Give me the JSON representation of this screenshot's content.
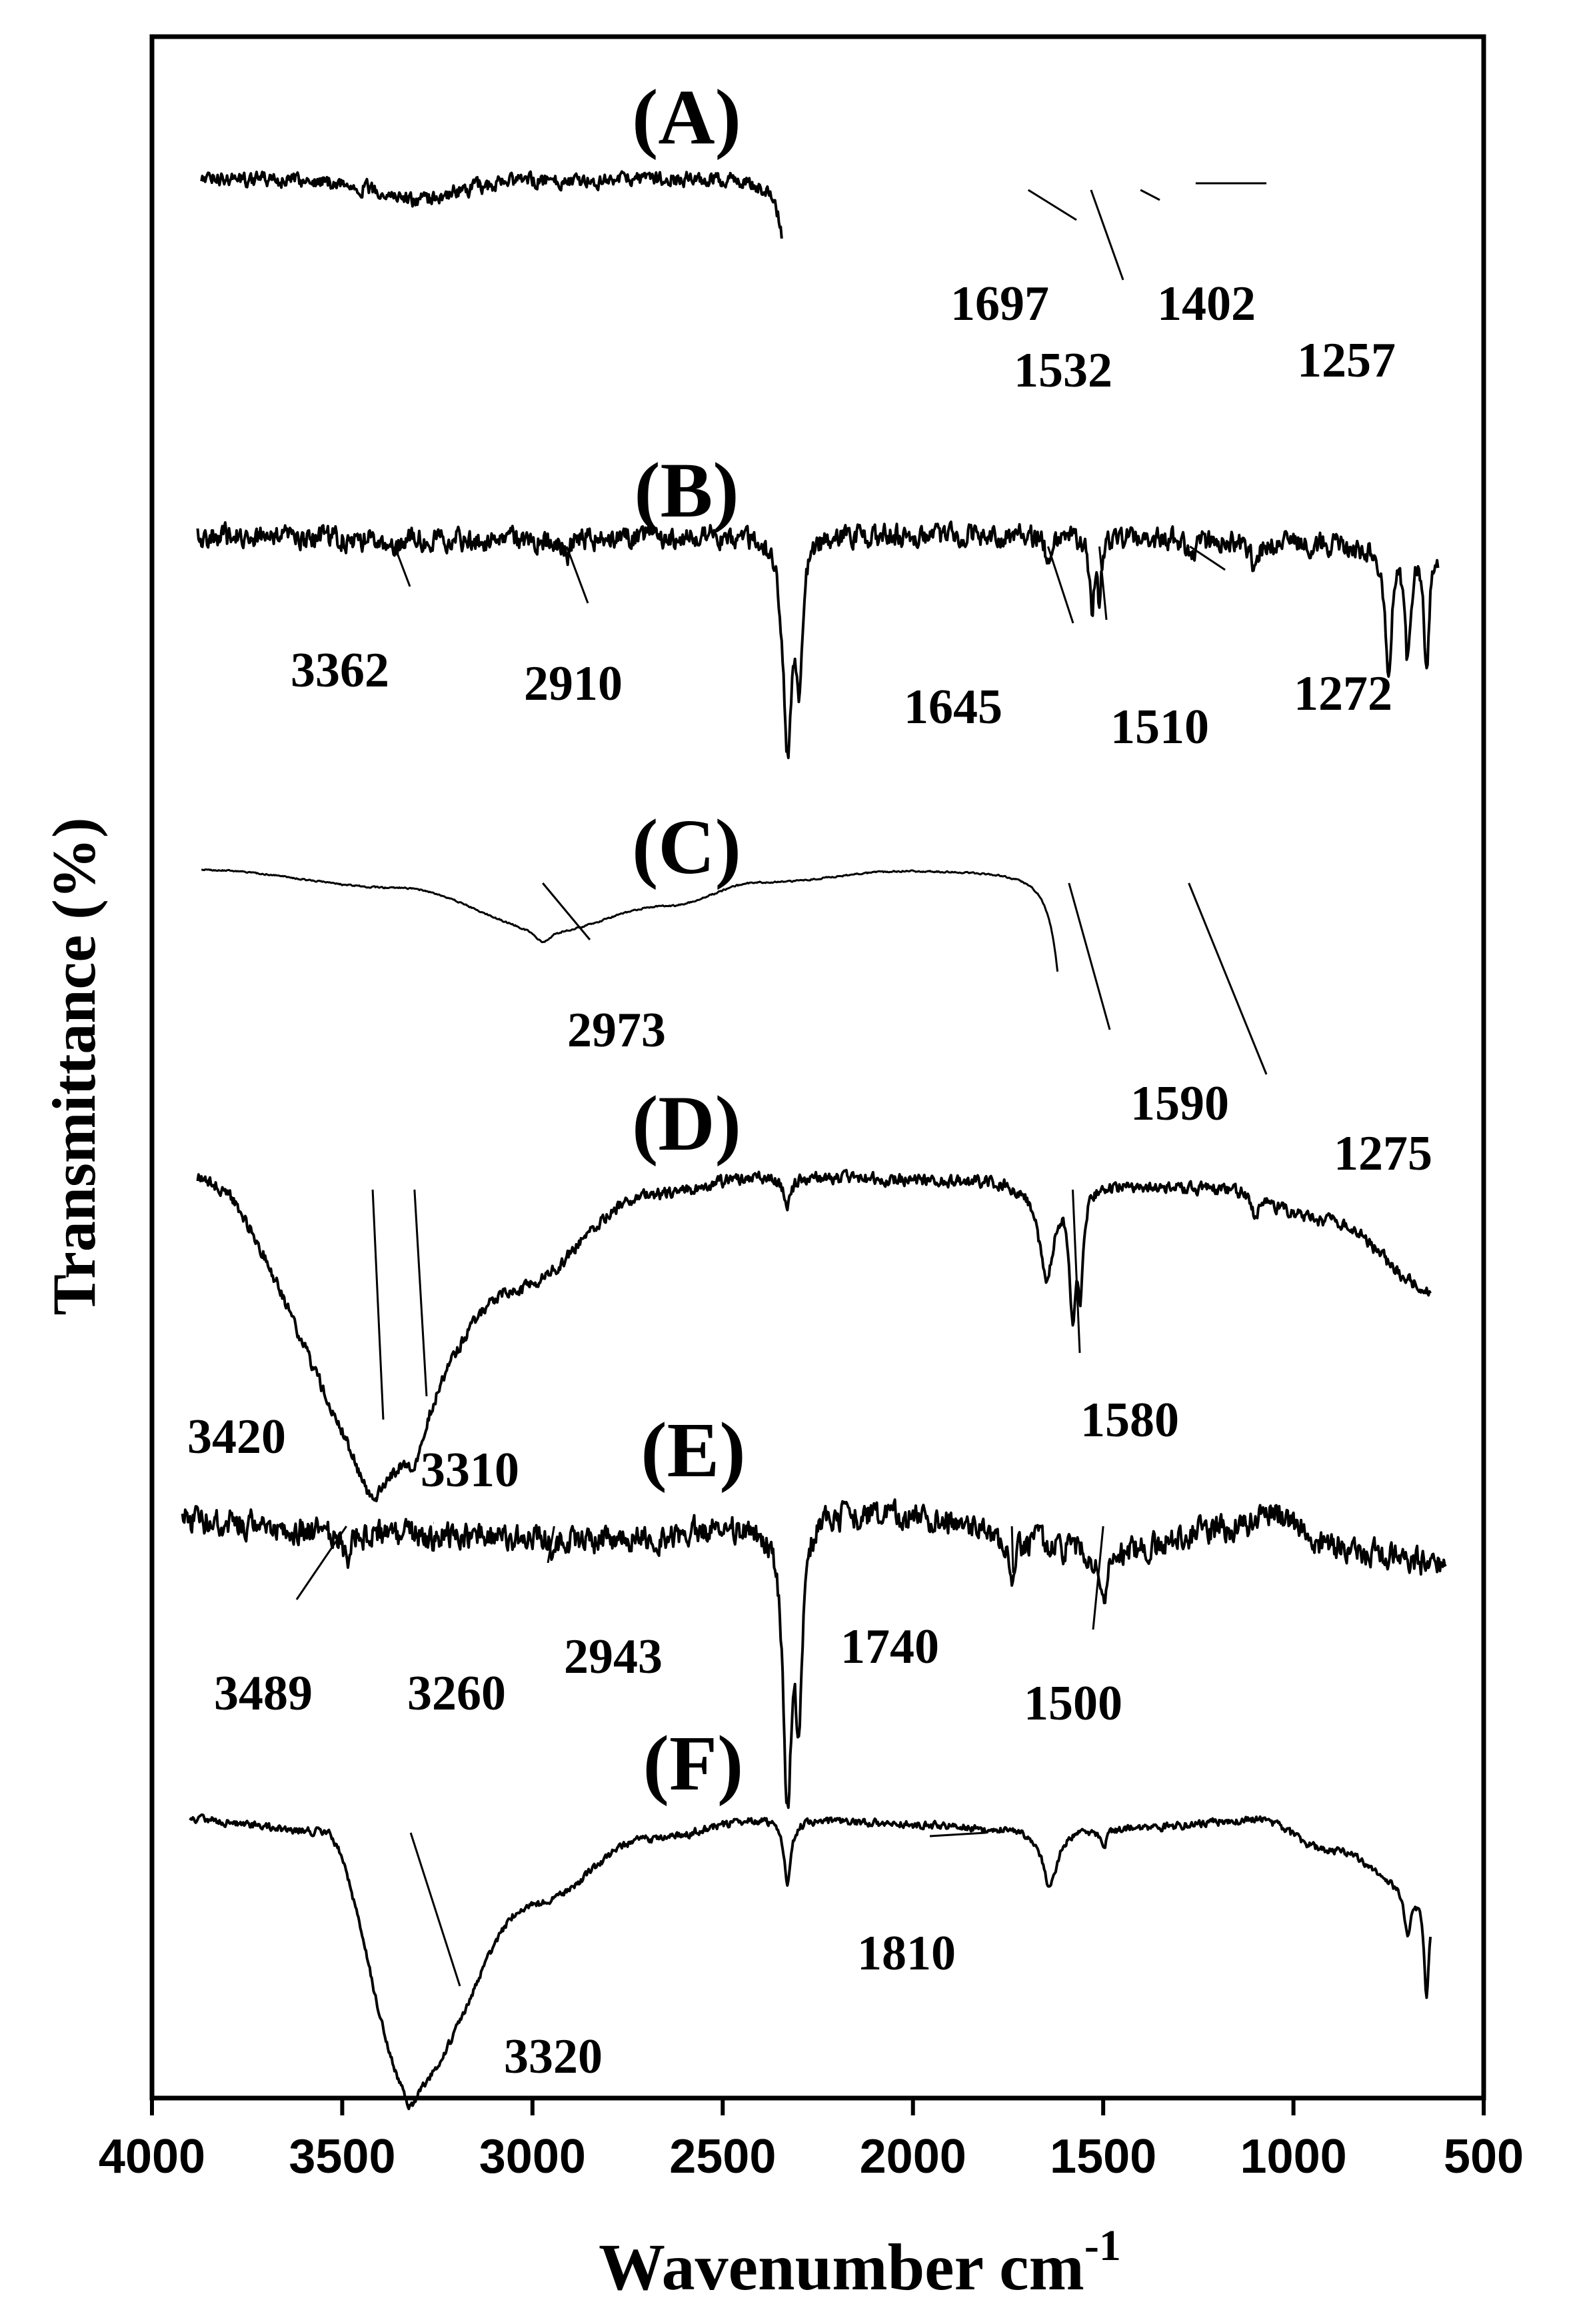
{
  "chart_data": {
    "type": "line",
    "title": "",
    "xlabel": "Wavenumber cm",
    "xlabel_superscript": "-1",
    "ylabel": "Transmittance (%)",
    "xlim": [
      4000,
      500
    ],
    "xticks": [
      "4000",
      "3500",
      "3000",
      "2500",
      "2000",
      "1500",
      "1000",
      "500"
    ],
    "grid": false,
    "series": [
      {
        "name": "(A)",
        "noise": 0.35,
        "baseline": [
          [
            3870,
            0.05
          ],
          [
            3600,
            0.1
          ],
          [
            3300,
            0.4
          ],
          [
            3000,
            0.1
          ],
          [
            2400,
            0.0
          ],
          [
            2345,
            0.05
          ]
        ],
        "peaks": [
          [
            3300,
            0.35,
            80
          ],
          [
            2310,
            8.0,
            18
          ],
          [
            2270,
            4.5,
            12
          ],
          [
            1697,
            0.6,
            8
          ],
          [
            1532,
            1.6,
            8
          ],
          [
            1502,
            1.1,
            6
          ],
          [
            1402,
            0.4,
            10
          ],
          [
            1257,
            0.3,
            10
          ],
          [
            820,
            0.6,
            14
          ],
          [
            700,
            1.4,
            10
          ],
          [
            640,
            2.5,
            8
          ],
          [
            600,
            3.0,
            6
          ]
        ],
        "annotations": [
          {
            "label": "1697",
            "x": 1697
          },
          {
            "label": "1532",
            "x": 1532
          },
          {
            "label": "1402",
            "x": 1402
          },
          {
            "label": "1257",
            "x": 1257
          }
        ]
      },
      {
        "name": "(B)",
        "noise": 0.55,
        "baseline": [
          [
            3880,
            0.1
          ],
          [
            3200,
            0.2
          ],
          [
            2400,
            0.05
          ],
          [
            1600,
            0.05
          ],
          [
            1000,
            0.3
          ],
          [
            620,
            0.6
          ]
        ],
        "peaks": [
          [
            3362,
            0.5,
            10
          ],
          [
            2910,
            0.6,
            10
          ],
          [
            2330,
            6.5,
            14
          ],
          [
            2300,
            4.0,
            10
          ],
          [
            1645,
            1.0,
            8
          ],
          [
            1530,
            2.2,
            8
          ],
          [
            1510,
            1.8,
            6
          ],
          [
            1272,
            0.6,
            10
          ],
          [
            1100,
            0.8,
            12
          ],
          [
            750,
            3.8,
            10
          ],
          [
            700,
            3.2,
            8
          ],
          [
            650,
            3.5,
            8
          ]
        ],
        "annotations": [
          {
            "label": "3362",
            "x": 3362
          },
          {
            "label": "2910",
            "x": 2910
          },
          {
            "label": "1645",
            "x": 1645
          },
          {
            "label": "1510",
            "x": 1510
          },
          {
            "label": "1272",
            "x": 1272
          }
        ]
      },
      {
        "name": "(C)",
        "noise": 0.02,
        "baseline": [
          [
            3870,
            0.0
          ],
          [
            3350,
            0.3
          ],
          [
            2950,
            1.0
          ],
          [
            2650,
            0.6
          ],
          [
            2400,
            0.2
          ],
          [
            2000,
            0.0
          ],
          [
            1620,
            0.0
          ]
        ],
        "peaks": [
          [
            2973,
            0.2,
            25
          ],
          [
            1590,
            3.5,
            28
          ],
          [
            1520,
            2.0,
            15
          ],
          [
            1480,
            1.8,
            12
          ],
          [
            1275,
            2.5,
            18
          ],
          [
            1150,
            2.0,
            15
          ],
          [
            1060,
            2.8,
            20
          ],
          [
            990,
            2.0,
            15
          ],
          [
            880,
            1.2,
            15
          ],
          [
            810,
            3.0,
            15
          ],
          [
            720,
            2.0,
            12
          ],
          [
            650,
            3.0,
            12
          ]
        ],
        "annotations": [
          {
            "label": "2973",
            "x": 2973
          },
          {
            "label": "1590",
            "x": 1590
          },
          {
            "label": "1275",
            "x": 1275
          }
        ]
      },
      {
        "name": "(D)",
        "noise": 0.25,
        "baseline": [
          [
            3880,
            0.0
          ],
          [
            3400,
            7.0
          ],
          [
            3050,
            3.0
          ],
          [
            2700,
            0.5
          ],
          [
            2400,
            0.0
          ],
          [
            1800,
            0.1
          ],
          [
            1200,
            0.3
          ],
          [
            900,
            1.2
          ],
          [
            640,
            3.0
          ]
        ],
        "peaks": [
          [
            3420,
            1.5,
            60
          ],
          [
            3310,
            1.0,
            30
          ],
          [
            2330,
            0.8,
            12
          ],
          [
            1650,
            2.5,
            25
          ],
          [
            1580,
            3.2,
            10
          ],
          [
            1560,
            2.5,
            8
          ],
          [
            1100,
            0.6,
            10
          ]
        ],
        "annotations": [
          {
            "label": "3420",
            "x": 3420
          },
          {
            "label": "3310",
            "x": 3310
          },
          {
            "label": "1580",
            "x": 1580
          }
        ]
      },
      {
        "name": "(E)",
        "noise": 0.6,
        "baseline": [
          [
            3920,
            0.2
          ],
          [
            3400,
            0.6
          ],
          [
            2800,
            0.8
          ],
          [
            2400,
            0.3
          ],
          [
            2200,
            0.0
          ],
          [
            1900,
            0.2
          ],
          [
            1700,
            0.8
          ],
          [
            1500,
            1.2
          ],
          [
            1150,
            0.4
          ],
          [
            1050,
            0.0
          ],
          [
            900,
            1.0
          ],
          [
            600,
            1.5
          ]
        ],
        "peaks": [
          [
            3489,
            0.8,
            10
          ],
          [
            3260,
            0.3,
            10
          ],
          [
            2943,
            0.4,
            10
          ],
          [
            2330,
            8.0,
            14
          ],
          [
            2300,
            5.0,
            10
          ],
          [
            1740,
            1.0,
            10
          ],
          [
            1500,
            1.2,
            10
          ]
        ],
        "annotations": [
          {
            "label": "3489",
            "x": 3489
          },
          {
            "label": "3260",
            "x": 3260
          },
          {
            "label": "2943",
            "x": 2943
          },
          {
            "label": "1740",
            "x": 1740
          },
          {
            "label": "1500",
            "x": 1500
          }
        ]
      },
      {
        "name": "(F)",
        "noise": 0.15,
        "baseline": [
          [
            3900,
            0.0
          ],
          [
            3550,
            0.3
          ],
          [
            3320,
            6.8
          ],
          [
            3000,
            2.2
          ],
          [
            2700,
            0.5
          ],
          [
            2400,
            0.0
          ],
          [
            1700,
            0.2
          ],
          [
            1400,
            0.2
          ],
          [
            1100,
            0.0
          ],
          [
            900,
            0.8
          ],
          [
            640,
            2.0
          ]
        ],
        "peaks": [
          [
            3320,
            0.6,
            25
          ],
          [
            2330,
            1.6,
            12
          ],
          [
            1810,
            0.05,
            20
          ],
          [
            1640,
            1.5,
            25
          ],
          [
            1500,
            0.5,
            10
          ],
          [
            700,
            1.0,
            10
          ],
          [
            650,
            2.5,
            8
          ]
        ],
        "annotations": [
          {
            "label": "3320",
            "x": 3320
          },
          {
            "label": "1810",
            "x": 1810
          }
        ]
      }
    ]
  }
}
